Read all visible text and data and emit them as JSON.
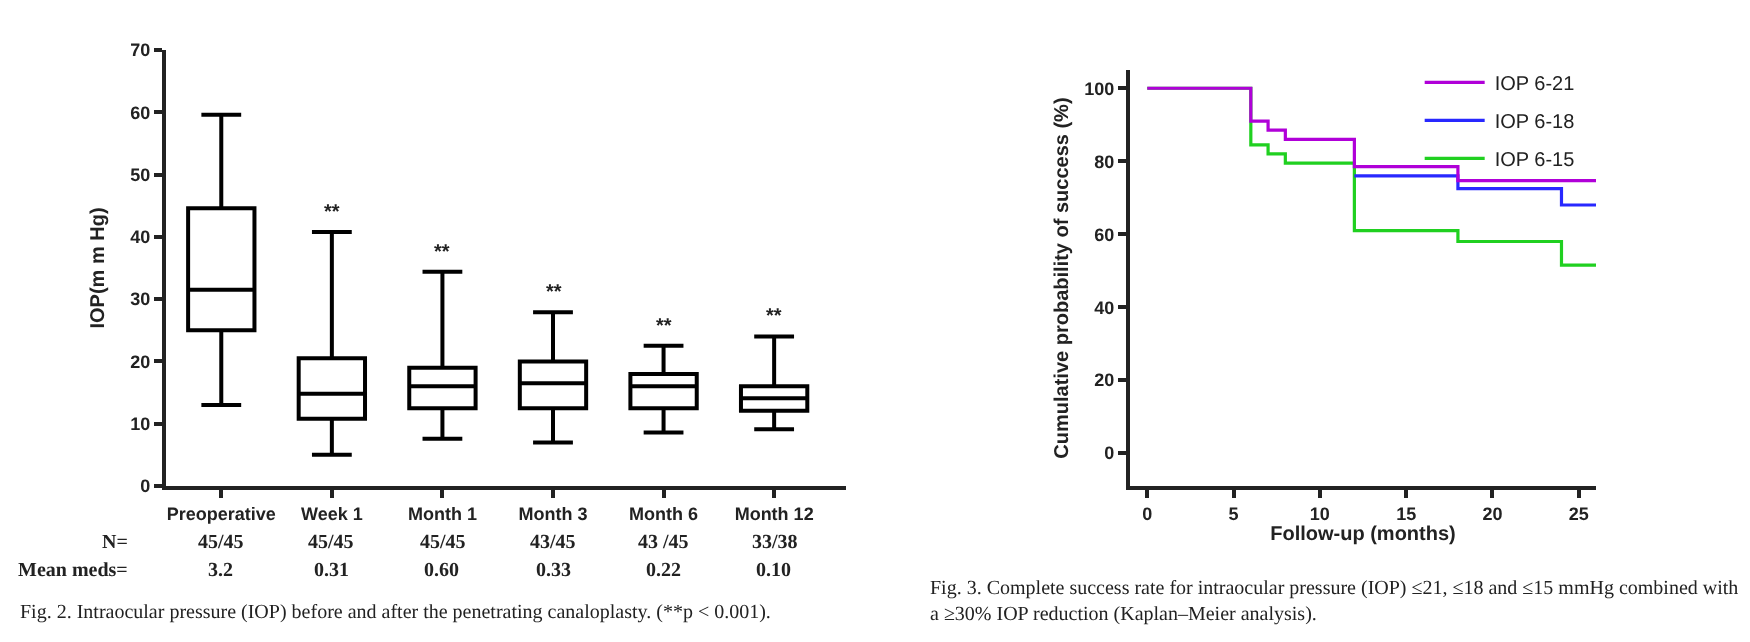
{
  "chart_data": [
    {
      "type": "box",
      "ylabel": "IOP(m m Hg)",
      "categories": [
        "Preoperative",
        "Week 1",
        "Month 1",
        "Month 3",
        "Month 6",
        "Month 12"
      ],
      "boxes": [
        {
          "low": 13,
          "q1": 25,
          "median": 31.5,
          "q3": 44.6,
          "high": 59.6
        },
        {
          "low": 5,
          "q1": 10.8,
          "median": 14.8,
          "q3": 20.5,
          "high": 40.8
        },
        {
          "low": 7.6,
          "q1": 12.5,
          "median": 16,
          "q3": 19,
          "high": 34.4
        },
        {
          "low": 7,
          "q1": 12.5,
          "median": 16.5,
          "q3": 20,
          "high": 27.9
        },
        {
          "low": 8.6,
          "q1": 12.5,
          "median": 16,
          "q3": 18,
          "high": 22.5
        },
        {
          "low": 9.1,
          "q1": 12.1,
          "median": 14.1,
          "q3": 16,
          "high": 24
        }
      ],
      "color": "#000000",
      "ylim": [
        0,
        70
      ],
      "yticks": [
        0,
        10,
        20,
        30,
        40,
        50,
        60,
        70
      ],
      "grid": false,
      "legend": false,
      "annotations": [
        {
          "text": "**",
          "x": "Week 1",
          "y": 40.8
        },
        {
          "text": "**",
          "x": "Month 1",
          "y": 34.4
        },
        {
          "text": "**",
          "x": "Month 3",
          "y": 27.9
        },
        {
          "text": "**",
          "x": "Month 6",
          "y": 22.5
        },
        {
          "text": "**",
          "x": "Month 12",
          "y": 24
        },
        "N=",
        "45/45",
        "45/45",
        "45/45",
        "43/45",
        "43 /45",
        "33/38",
        "Mean meds=",
        "3.2",
        "0.31",
        "0.60",
        "0.33",
        "0.22",
        "0.10",
        "Fig. 2. Intraocular pressure (IOP) before and after the penetrating canaloplasty. (**p < 0.001)."
      ]
    },
    {
      "type": "step",
      "xlabel": "Follow-up (months)",
      "ylabel": "Cumulative probability of success (%)",
      "series": [
        {
          "name": "IOP 6-21",
          "color": "#b000d8",
          "x": [
            0,
            6,
            7,
            8,
            12,
            18,
            26
          ],
          "values": [
            100,
            91,
            88.5,
            86,
            78.5,
            74.7,
            74.7
          ]
        },
        {
          "name": "IOP 6-18",
          "color": "#2828ff",
          "x": [
            12,
            18,
            24,
            26
          ],
          "values": [
            76,
            72.5,
            68,
            68
          ]
        },
        {
          "name": "IOP 6-15",
          "color": "#20d020",
          "x": [
            0,
            6,
            7,
            8,
            12,
            18,
            24,
            26
          ],
          "values": [
            100,
            84.5,
            82,
            79.5,
            61,
            58,
            51.5,
            51.5
          ]
        }
      ],
      "xlim": [
        -1,
        26
      ],
      "xticks": [
        0,
        5,
        10,
        15,
        20,
        25
      ],
      "ylim": [
        -9,
        105
      ],
      "yticks": [
        0,
        20,
        40,
        60,
        80,
        100
      ],
      "grid": false,
      "legend": "top right",
      "marker": "none",
      "line_style": "solid",
      "annotations": [
        "Fig. 3. Complete success rate for intraocular pressure (IOP) ≤21, ≤18 and ≤15 mmHg combined with a ≥30% IOP reduction (Kaplan–Meier analysis)."
      ]
    }
  ]
}
